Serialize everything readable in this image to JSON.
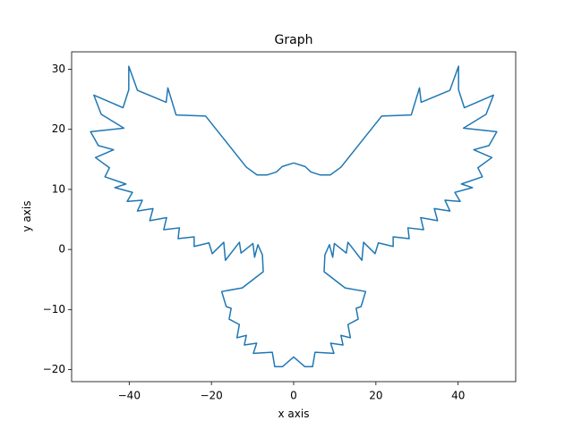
{
  "chart_data": {
    "type": "line",
    "title": "Graph",
    "xlabel": "x axis",
    "ylabel": "y axis",
    "x": [
      0,
      2.8,
      4.2,
      6.5,
      8.9,
      11.5,
      21.4,
      28.6,
      30.6,
      31.0,
      38.0,
      40.1,
      40.1,
      41.5,
      48.6,
      46.8,
      41.3,
      49.4,
      47.5,
      43.8,
      48.2,
      44.8,
      45.9,
      40.8,
      43.5,
      39.2,
      40.5,
      36.8,
      38.0,
      34.2,
      35.0,
      30.9,
      31.6,
      27.8,
      28.1,
      24.2,
      24.2,
      20.6,
      19.8,
      17.0,
      16.6,
      13.2,
      12.8,
      9.9,
      9.5,
      8.7,
      7.6,
      7.4,
      12.5,
      17.5,
      16.4,
      15.2,
      15.7,
      13.2,
      13.8,
      11.5,
      12.0,
      9.0,
      9.8,
      5.2,
      4.6,
      2.7,
      0,
      -2.7,
      -4.6,
      -5.2,
      -9.8,
      -9.0,
      -12.0,
      -11.5,
      -13.8,
      -13.2,
      -15.7,
      -15.2,
      -16.4,
      -17.5,
      -12.5,
      -7.4,
      -7.6,
      -8.7,
      -9.5,
      -9.9,
      -12.8,
      -13.2,
      -16.6,
      -17.0,
      -19.8,
      -20.6,
      -24.2,
      -24.2,
      -28.1,
      -27.8,
      -31.6,
      -30.9,
      -35.0,
      -34.2,
      -38.0,
      -36.8,
      -40.5,
      -39.2,
      -43.5,
      -40.8,
      -45.9,
      -44.8,
      -48.2,
      -43.8,
      -47.5,
      -49.4,
      -41.3,
      -46.8,
      -48.6,
      -41.5,
      -40.1,
      -40.1,
      -38.0,
      -31.0,
      -30.6,
      -28.6,
      -21.4,
      -11.5,
      -8.9,
      -6.5,
      -4.2,
      -2.8,
      0
    ],
    "series": [
      {
        "color": "#1f77b4",
        "values": [
          14.4,
          13.8,
          12.9,
          12.4,
          12.4,
          13.7,
          22.2,
          22.4,
          26.9,
          24.5,
          26.5,
          30.5,
          26.6,
          23.6,
          25.7,
          22.5,
          20.2,
          19.6,
          17.3,
          16.6,
          15.3,
          13.6,
          12.1,
          10.9,
          10.3,
          9.5,
          8.0,
          8.2,
          6.4,
          6.8,
          4.8,
          5.3,
          3.3,
          3.6,
          1.8,
          2.1,
          0.5,
          1.1,
          -0.7,
          1.2,
          -1.8,
          1.2,
          -0.6,
          1.0,
          -1.3,
          0.8,
          -0.9,
          -3.7,
          -6.4,
          -7.0,
          -9.5,
          -9.8,
          -11.6,
          -12.5,
          -14.7,
          -14.3,
          -15.9,
          -15.6,
          -17.3,
          -17.1,
          -19.5,
          -19.5,
          -17.9,
          -19.5,
          -19.5,
          -17.1,
          -17.3,
          -15.6,
          -15.9,
          -14.3,
          -14.7,
          -12.5,
          -11.6,
          -9.8,
          -9.5,
          -7.0,
          -6.4,
          -3.7,
          -0.9,
          0.8,
          -1.3,
          1.0,
          -0.6,
          1.2,
          -1.8,
          1.2,
          -0.7,
          1.1,
          0.5,
          2.1,
          1.8,
          3.6,
          3.3,
          5.3,
          4.8,
          6.8,
          6.4,
          8.2,
          8.0,
          9.5,
          10.3,
          10.9,
          12.1,
          13.6,
          15.3,
          16.6,
          17.3,
          19.6,
          20.2,
          22.5,
          25.7,
          23.6,
          26.6,
          30.5,
          26.5,
          24.5,
          26.9,
          22.4,
          22.2,
          13.7,
          12.4,
          12.4,
          12.9,
          13.8,
          14.4
        ]
      }
    ],
    "xlim": [
      -54,
      54
    ],
    "ylim": [
      -22,
      32.9
    ],
    "xticks": [
      {
        "value": -40,
        "label": "−40"
      },
      {
        "value": -20,
        "label": "−20"
      },
      0,
      20,
      40
    ],
    "yticks": [
      {
        "value": -20,
        "label": "−20"
      },
      {
        "value": -10,
        "label": "−10"
      },
      0,
      10,
      20,
      30
    ]
  }
}
